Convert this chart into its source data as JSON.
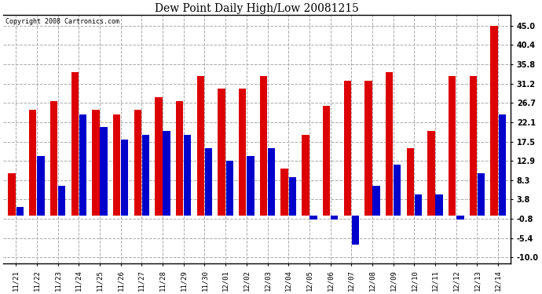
{
  "title": "Dew Point Daily High/Low 20081215",
  "copyright": "Copyright 2008 Cartronics.com",
  "categories": [
    "11/21",
    "11/22",
    "11/23",
    "11/24",
    "11/25",
    "11/26",
    "11/27",
    "11/28",
    "11/29",
    "11/30",
    "12/01",
    "12/02",
    "12/03",
    "12/04",
    "12/05",
    "12/06",
    "12/07",
    "12/08",
    "12/09",
    "12/10",
    "12/11",
    "12/12",
    "12/13",
    "12/14"
  ],
  "highs": [
    10,
    25,
    27,
    34,
    25,
    24,
    25,
    28,
    27,
    33,
    30,
    30,
    33,
    11,
    19,
    26,
    32,
    32,
    34,
    16,
    20,
    33,
    33,
    45
  ],
  "lows": [
    2,
    14,
    7,
    24,
    21,
    18,
    19,
    20,
    19,
    16,
    13,
    14,
    16,
    9,
    -1,
    -1,
    -7,
    7,
    12,
    5,
    5,
    -1,
    10,
    24
  ],
  "high_color": "#dd0000",
  "low_color": "#0000cc",
  "bg_color": "#ffffff",
  "plot_bg_color": "#ffffff",
  "grid_color": "#aaaaaa",
  "yticks": [
    -10.0,
    -5.4,
    -0.8,
    3.8,
    8.3,
    12.9,
    17.5,
    22.1,
    26.7,
    31.2,
    35.8,
    40.4,
    45.0
  ],
  "ymin": -11.5,
  "ymax": 47.5
}
